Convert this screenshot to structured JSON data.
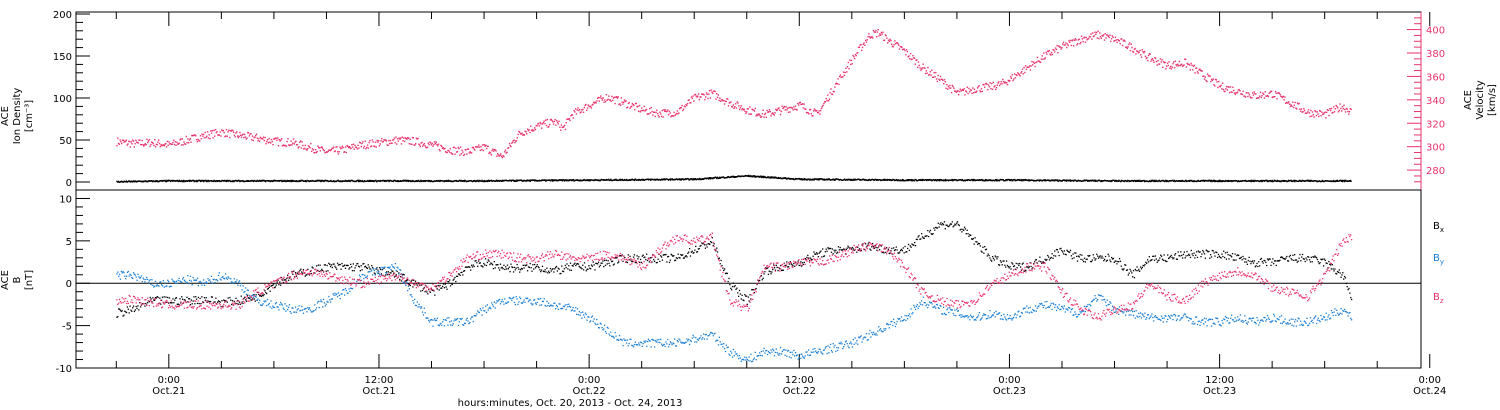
{
  "chart_data": [
    {
      "type": "scatter",
      "panel": "top",
      "ylabel_lines": [
        "ACE",
        "Ion Density",
        "[cm⁻³]"
      ],
      "y2label_lines": [
        "ACE",
        "Velocity",
        "[km/s]"
      ],
      "ylim": [
        0,
        200
      ],
      "y_ticks": [
        "0",
        "50",
        "100",
        "150",
        "200"
      ],
      "y2lim": [
        263,
        415
      ],
      "y2_ticks": [
        "280",
        "300",
        "320",
        "340",
        "360",
        "380",
        "400"
      ],
      "colors": {
        "density": "#000000",
        "velocity": "#e8336b",
        "axis2": "#e8336b"
      },
      "series": [
        {
          "key": "velocity",
          "axis": "right",
          "x": [
            -3,
            -2,
            -1,
            0,
            1,
            2,
            3,
            4,
            5,
            6,
            7,
            8,
            9,
            10,
            11,
            12,
            13,
            14,
            15,
            16,
            17,
            18,
            19,
            20,
            21,
            22,
            22.5,
            23,
            24,
            25,
            26,
            27,
            28,
            29,
            30,
            31,
            32,
            33,
            34,
            35,
            36,
            37,
            38,
            39,
            40,
            40.5,
            41,
            42,
            43,
            44,
            45,
            46,
            47,
            47.5,
            48,
            49,
            50,
            51,
            52,
            53,
            54,
            55,
            56,
            57,
            58,
            59,
            60,
            61,
            62,
            63,
            64,
            65,
            66,
            67,
            67.5
          ],
          "y": [
            305,
            303,
            304,
            302,
            306,
            310,
            313,
            310,
            308,
            305,
            304,
            300,
            296,
            298,
            302,
            304,
            306,
            305,
            302,
            298,
            296,
            300,
            292,
            312,
            318,
            322,
            316,
            328,
            336,
            343,
            338,
            332,
            329,
            330,
            342,
            346,
            338,
            332,
            328,
            332,
            336,
            328,
            352,
            375,
            396,
            398,
            392,
            382,
            368,
            358,
            346,
            350,
            352,
            354,
            358,
            368,
            378,
            386,
            392,
            396,
            392,
            385,
            376,
            370,
            372,
            362,
            352,
            348,
            344,
            346,
            338,
            330,
            328,
            335,
            330
          ]
        },
        {
          "key": "density",
          "axis": "left",
          "x": [
            -3,
            0,
            6,
            12,
            18,
            24,
            30,
            33,
            36,
            42,
            48,
            54,
            60,
            66,
            67.5
          ],
          "y": [
            1,
            2,
            2,
            2,
            2,
            3,
            4,
            8,
            4,
            3,
            3,
            2,
            2,
            2,
            2
          ]
        }
      ]
    },
    {
      "type": "scatter",
      "panel": "bottom",
      "ylabel_lines": [
        "ACE",
        "B",
        "[nT]"
      ],
      "ylim": [
        -10,
        11
      ],
      "y_ticks": [
        "-10",
        "-5",
        "0",
        "5",
        "10"
      ],
      "xlim": [
        -5.3,
        71.5
      ],
      "x_ticks": [
        {
          "x": 0,
          "time": "0:00",
          "date": "Oct.21"
        },
        {
          "x": 12,
          "time": "12:00",
          "date": "Oct.21"
        },
        {
          "x": 24,
          "time": "0:00",
          "date": "Oct.22"
        },
        {
          "x": 36,
          "time": "12:00",
          "date": "Oct.22"
        },
        {
          "x": 48,
          "time": "0:00",
          "date": "Oct.23"
        },
        {
          "x": 60,
          "time": "12:00",
          "date": "Oct.23"
        },
        {
          "x": 72,
          "time": "0:00",
          "date": "Oct.24"
        }
      ],
      "xlabel": "hours:minutes, Oct. 20, 2013 - Oct. 24, 2013",
      "legend": [
        {
          "label": "B",
          "sub": "x",
          "color": "#000000"
        },
        {
          "label": "B",
          "sub": "y",
          "color": "#1a7fd4"
        },
        {
          "label": "B",
          "sub": "z",
          "color": "#e8336b"
        }
      ],
      "series": [
        {
          "key": "bx",
          "color": "#000000",
          "x": [
            -3,
            -2,
            -1,
            0,
            1,
            2,
            3,
            4,
            5,
            6,
            7,
            8,
            9,
            10,
            11,
            12,
            13,
            14,
            15,
            16,
            17,
            18,
            19,
            20,
            21,
            22,
            23,
            24,
            25,
            26,
            27,
            28,
            29,
            30,
            31,
            32,
            33,
            34,
            35,
            36,
            37,
            38,
            39,
            40,
            41,
            42,
            43,
            44,
            45,
            46,
            47,
            48,
            49,
            50,
            51,
            52,
            53,
            54,
            55,
            56,
            57,
            58,
            59,
            60,
            61,
            62,
            63,
            64,
            65,
            66,
            67,
            67.5
          ],
          "y": [
            -3.5,
            -3,
            -2,
            -2,
            -2,
            -1.8,
            -2.2,
            -2,
            -1.5,
            0,
            1,
            1.5,
            2,
            2,
            2,
            1.5,
            1,
            0,
            -1,
            0,
            2,
            2.5,
            2,
            1.8,
            2,
            1.5,
            2,
            2,
            2.5,
            3,
            3,
            3,
            3,
            4,
            5,
            0,
            -2,
            1.5,
            2,
            2.5,
            3.5,
            4,
            4,
            4.5,
            4,
            4,
            5.5,
            7,
            7,
            5,
            3,
            2,
            2,
            3,
            4,
            3,
            3,
            3,
            1,
            3,
            3,
            3.5,
            3.5,
            3.5,
            3,
            2.5,
            2.5,
            3,
            3,
            2.5,
            1,
            -1.5
          ]
        },
        {
          "key": "by",
          "color": "#1a7fd4",
          "x": [
            -3,
            -2,
            -1,
            0,
            1,
            2,
            3,
            4,
            5,
            6,
            7,
            8,
            9,
            10,
            11,
            12,
            13,
            14,
            15,
            16,
            17,
            18,
            19,
            20,
            21,
            22,
            23,
            24,
            25,
            26,
            27,
            28,
            29,
            30,
            31,
            32,
            33,
            34,
            35,
            36,
            37,
            38,
            39,
            40,
            41,
            42,
            43,
            44,
            45,
            46,
            47,
            48,
            49,
            50,
            51,
            52,
            53,
            54,
            55,
            56,
            57,
            58,
            59,
            60,
            61,
            62,
            63,
            64,
            65,
            66,
            67,
            67.5
          ],
          "y": [
            1,
            1,
            0,
            0,
            0.5,
            0,
            1,
            0,
            -2,
            -2.5,
            -3,
            -3,
            -2,
            -1,
            1,
            1.5,
            2,
            -2,
            -4.5,
            -4.5,
            -4.5,
            -3,
            -2,
            -2,
            -2,
            -2.5,
            -3,
            -4,
            -5.5,
            -7,
            -7,
            -7,
            -7,
            -6.5,
            -6,
            -8,
            -9,
            -8,
            -8,
            -8.5,
            -8,
            -7.5,
            -7,
            -6,
            -5,
            -4,
            -2,
            -3,
            -3.5,
            -4,
            -3.5,
            -4,
            -3,
            -2.5,
            -3,
            -3.5,
            -1.5,
            -3,
            -3.5,
            -4,
            -4,
            -4,
            -4.5,
            -4.5,
            -4,
            -4.5,
            -4,
            -4.5,
            -4.5,
            -4,
            -3,
            -4
          ]
        },
        {
          "key": "bz",
          "color": "#e8336b",
          "x": [
            -3,
            -2,
            -1,
            0,
            1,
            2,
            3,
            4,
            5,
            6,
            7,
            8,
            9,
            10,
            11,
            12,
            13,
            14,
            15,
            16,
            17,
            18,
            19,
            20,
            21,
            22,
            23,
            24,
            25,
            26,
            27,
            28,
            29,
            30,
            31,
            32,
            33,
            34,
            35,
            36,
            37,
            38,
            39,
            40,
            41,
            42,
            43,
            44,
            45,
            46,
            47,
            48,
            49,
            50,
            51,
            52,
            53,
            54,
            55,
            56,
            57,
            58,
            59,
            60,
            61,
            62,
            63,
            64,
            65,
            66,
            67,
            67.5
          ],
          "y": [
            -2,
            -1.8,
            -2.2,
            -2.5,
            -2.5,
            -2.5,
            -2.5,
            -2.5,
            -1,
            0,
            1,
            1.5,
            1,
            0.5,
            0,
            0.5,
            1,
            0,
            -0.5,
            1,
            3,
            3.5,
            3.5,
            3,
            3,
            3.5,
            3,
            3,
            3.5,
            3,
            2,
            4,
            5.5,
            5,
            5.5,
            -2,
            -3,
            2,
            2,
            2.5,
            2.5,
            3,
            4,
            4.5,
            4,
            2,
            -1,
            -2,
            -2.5,
            -2,
            0,
            1,
            2,
            2,
            -1,
            -3,
            -4,
            -3,
            -2.5,
            0,
            -1.5,
            -2,
            0,
            1,
            1.5,
            1,
            -0.5,
            -1,
            -1.5,
            1,
            5,
            5.5
          ]
        }
      ]
    }
  ]
}
